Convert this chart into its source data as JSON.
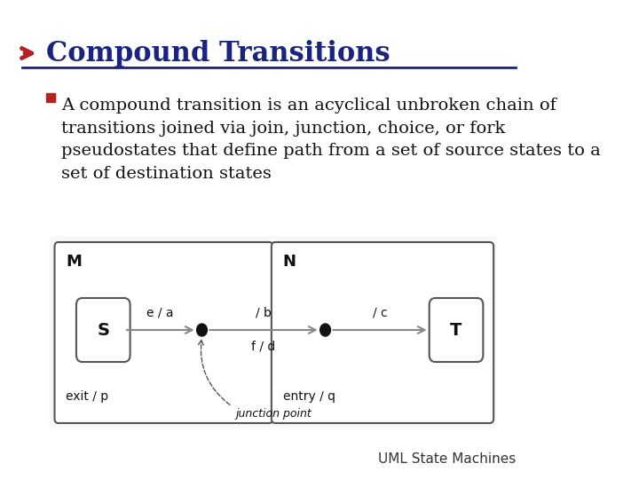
{
  "title": "Compound Transitions",
  "arrow_color": "#B22222",
  "title_color": "#1a237e",
  "title_fontsize": 22,
  "underline_color": "#1a237e",
  "bullet_color": "#B22222",
  "body_text": "A compound transition is an acyclical unbroken chain of\ntransitions joined via join, junction, choice, or fork\npseudostates that define path from a set of source states to a\nset of destination states",
  "body_fontsize": 14,
  "footer_text": "UML State Machines",
  "footer_fontsize": 11,
  "bg_color": "#ffffff",
  "diagram_bg": "#f5f5f5",
  "box_line_color": "#555555",
  "state_line_color": "#555555",
  "junction_color": "#111111",
  "arrow_line_color": "#888888",
  "text_color": "#111111"
}
